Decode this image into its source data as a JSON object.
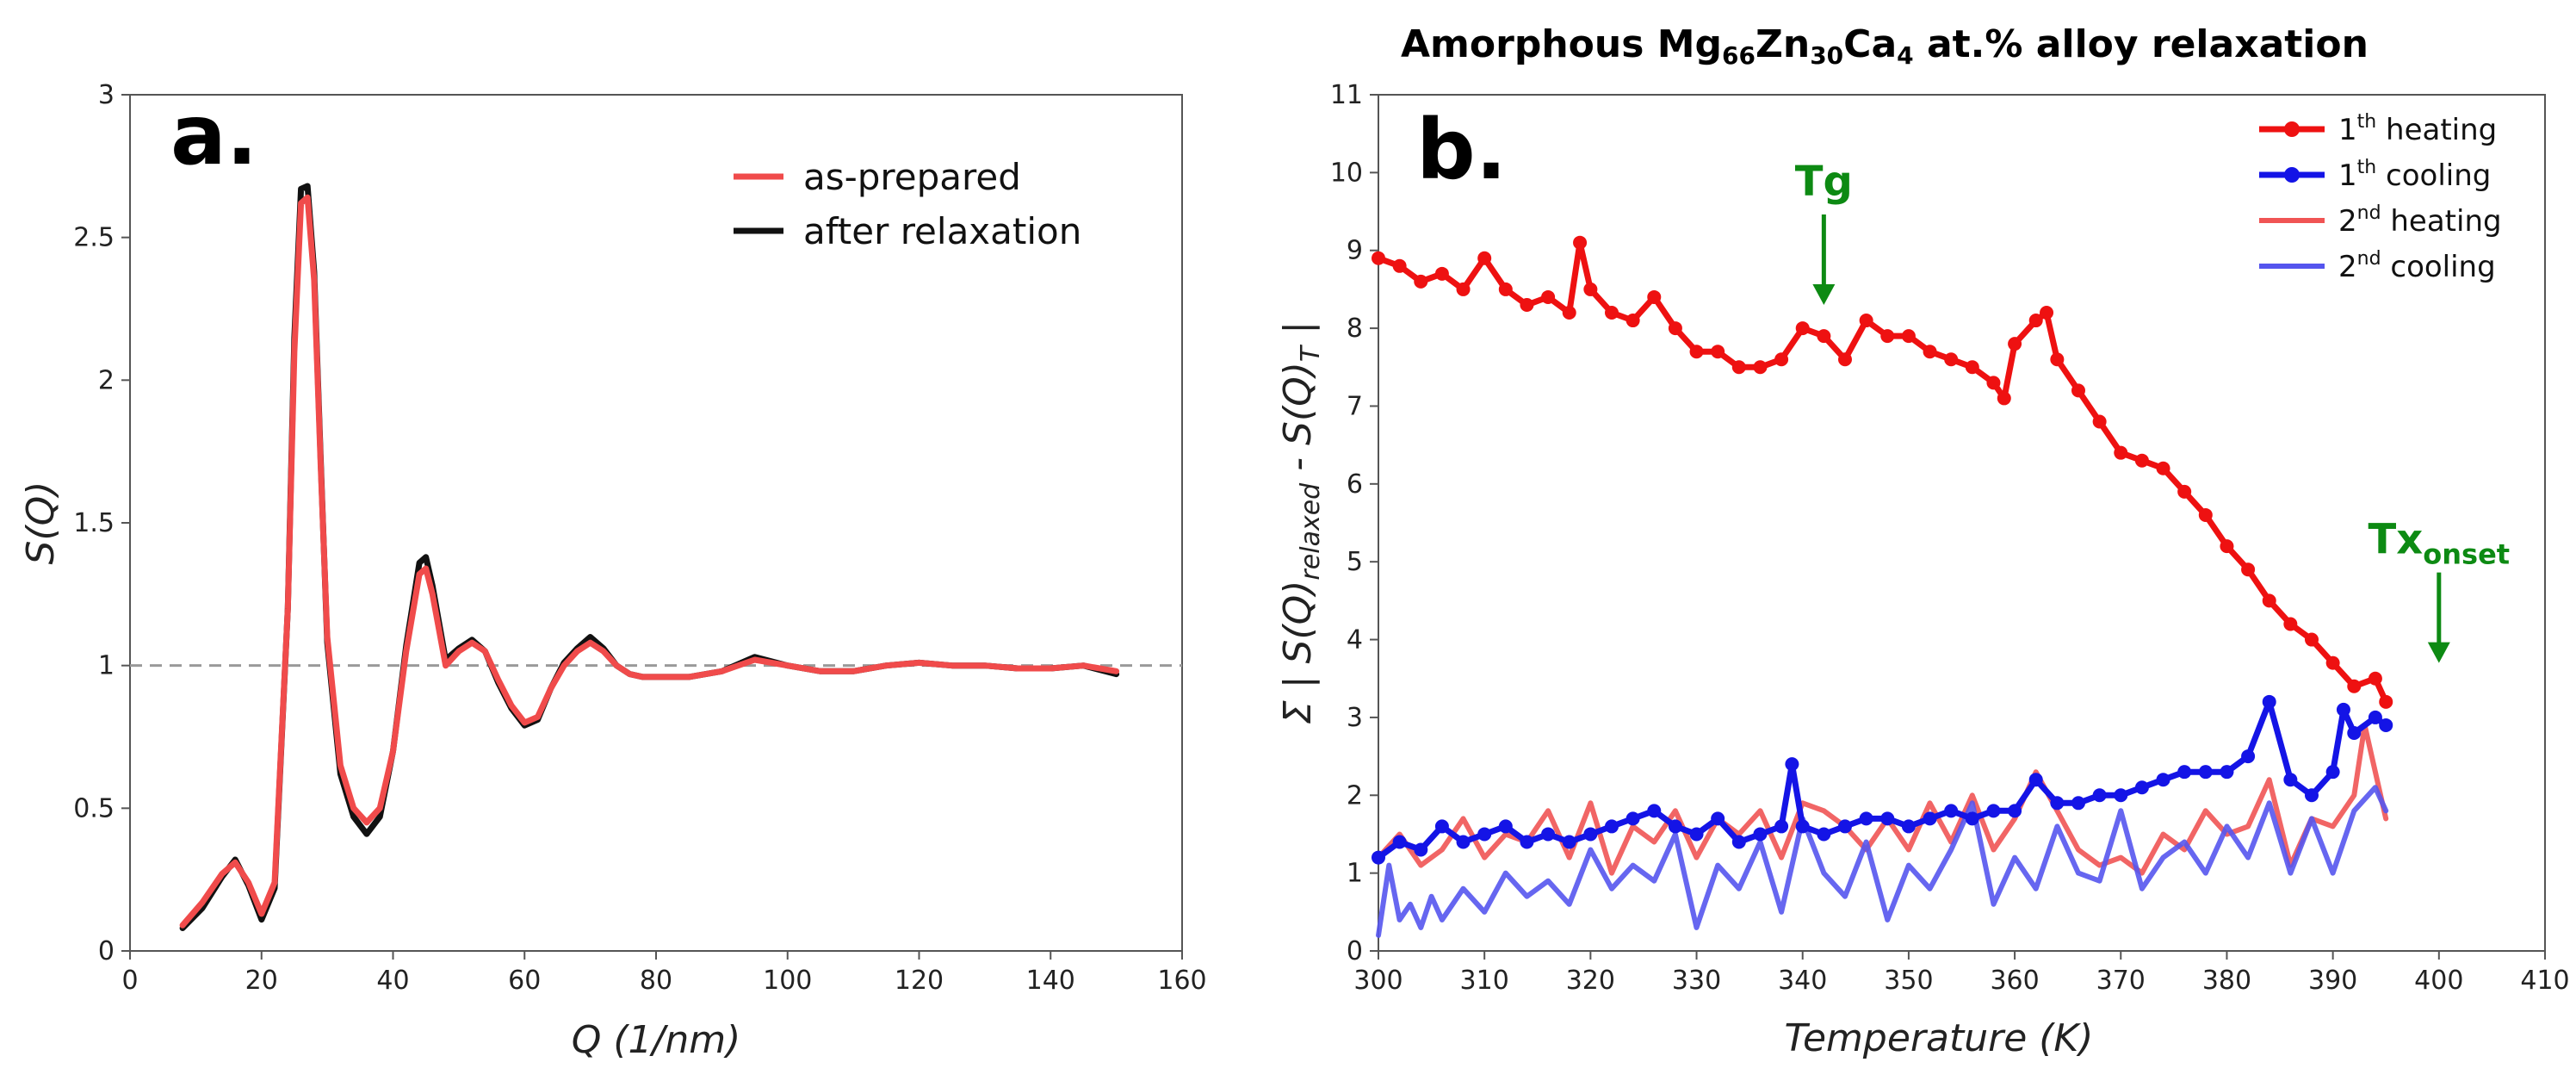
{
  "chart_data": [
    {
      "type": "line",
      "panel_label": "a.",
      "title": "",
      "xlabel": "Q (1/nm)",
      "ylabel": "S(Q)",
      "xlim": [
        0,
        160
      ],
      "ylim": [
        0,
        3
      ],
      "xticks": [
        "0",
        "20",
        "40",
        "60",
        "80",
        "100",
        "120",
        "140",
        "160"
      ],
      "yticks": [
        "0",
        "0.5",
        "1",
        "1.5",
        "2",
        "2.5",
        "3"
      ],
      "reference_line": 1,
      "legend_position": "top-right",
      "series": [
        {
          "name": "as-prepared",
          "color": "#f04b4b",
          "x": [
            8,
            11,
            14,
            16,
            18,
            20,
            22,
            24,
            25,
            26,
            27,
            28,
            29,
            30,
            32,
            34,
            36,
            38,
            40,
            42,
            44,
            45,
            46,
            48,
            50,
            52,
            54,
            56,
            58,
            60,
            62,
            64,
            66,
            68,
            70,
            72,
            74,
            76,
            78,
            80,
            85,
            90,
            95,
            100,
            105,
            110,
            115,
            120,
            125,
            130,
            135,
            140,
            145,
            150
          ],
          "y": [
            0.09,
            0.17,
            0.27,
            0.31,
            0.24,
            0.13,
            0.24,
            1.2,
            2.1,
            2.62,
            2.64,
            2.35,
            1.7,
            1.1,
            0.65,
            0.5,
            0.45,
            0.5,
            0.7,
            1.05,
            1.32,
            1.34,
            1.25,
            1.0,
            1.05,
            1.08,
            1.05,
            0.95,
            0.86,
            0.8,
            0.82,
            0.92,
            1.0,
            1.05,
            1.08,
            1.05,
            1.0,
            0.97,
            0.96,
            0.96,
            0.96,
            0.98,
            1.02,
            1.0,
            0.98,
            0.98,
            1.0,
            1.01,
            1.0,
            1.0,
            0.99,
            0.99,
            1.0,
            0.98
          ]
        },
        {
          "name": "after relaxation",
          "color": "#111111",
          "x": [
            8,
            11,
            14,
            16,
            18,
            20,
            22,
            24,
            25,
            26,
            27,
            28,
            29,
            30,
            32,
            34,
            36,
            38,
            40,
            42,
            44,
            45,
            46,
            48,
            50,
            52,
            54,
            56,
            58,
            60,
            62,
            64,
            66,
            68,
            70,
            72,
            74,
            76,
            78,
            80,
            85,
            90,
            95,
            100,
            105,
            110,
            115,
            120,
            125,
            130,
            135,
            140,
            145,
            150
          ],
          "y": [
            0.08,
            0.15,
            0.26,
            0.32,
            0.23,
            0.11,
            0.22,
            1.2,
            2.15,
            2.67,
            2.68,
            2.38,
            1.72,
            1.08,
            0.62,
            0.47,
            0.41,
            0.47,
            0.7,
            1.07,
            1.36,
            1.38,
            1.28,
            1.02,
            1.06,
            1.09,
            1.05,
            0.94,
            0.85,
            0.79,
            0.81,
            0.92,
            1.01,
            1.06,
            1.1,
            1.06,
            1.0,
            0.97,
            0.96,
            0.96,
            0.96,
            0.98,
            1.03,
            1.0,
            0.98,
            0.98,
            1.0,
            1.01,
            1.0,
            1.0,
            0.99,
            0.99,
            1.0,
            0.97
          ]
        }
      ]
    },
    {
      "type": "line",
      "panel_label": "b.",
      "title": "Amorphous Mg66Zn30Ca4 at.% alloy relaxation",
      "title_parts": {
        "a": "Amorphous Mg",
        "b": "66",
        "c": "Zn",
        "d": "30",
        "e": "Ca",
        "f": "4",
        "g": " at.% alloy relaxation"
      },
      "xlabel": "Temperature (K)",
      "ylabel": "Σ | S(Q)relaxed - S(Q)T |",
      "ylabel_parts": {
        "a": "Σ",
        "b": "S(Q)",
        "c": "relaxed",
        "d": " - S(Q)",
        "e": "T"
      },
      "xlim": [
        300,
        410
      ],
      "ylim": [
        0,
        11
      ],
      "xticks": [
        "300",
        "310",
        "320",
        "330",
        "340",
        "350",
        "360",
        "370",
        "380",
        "390",
        "400",
        "410"
      ],
      "yticks": [
        "0",
        "1",
        "2",
        "3",
        "4",
        "5",
        "6",
        "7",
        "8",
        "9",
        "10",
        "11"
      ],
      "legend_position": "top-right",
      "annotations": [
        {
          "text": "Tg",
          "x": 342,
          "y": 8.3
        },
        {
          "text": "Tx",
          "sub": "onset",
          "x": 400,
          "y": 3.7
        }
      ],
      "series": [
        {
          "name": "1th heating",
          "num": "1",
          "sup": "th",
          "rest": " heating",
          "color": "#ee1111",
          "markers": true,
          "x": [
            300,
            302,
            304,
            306,
            308,
            310,
            312,
            314,
            316,
            318,
            319,
            320,
            322,
            324,
            326,
            328,
            330,
            332,
            334,
            336,
            338,
            340,
            342,
            344,
            346,
            348,
            350,
            352,
            354,
            356,
            358,
            359,
            360,
            362,
            363,
            364,
            366,
            368,
            370,
            372,
            374,
            376,
            378,
            380,
            382,
            384,
            386,
            388,
            390,
            392,
            394,
            395
          ],
          "y": [
            8.9,
            8.8,
            8.6,
            8.7,
            8.5,
            8.9,
            8.5,
            8.3,
            8.4,
            8.2,
            9.1,
            8.5,
            8.2,
            8.1,
            8.4,
            8.0,
            7.7,
            7.7,
            7.5,
            7.5,
            7.6,
            8.0,
            7.9,
            7.6,
            8.1,
            7.9,
            7.9,
            7.7,
            7.6,
            7.5,
            7.3,
            7.1,
            7.8,
            8.1,
            8.2,
            7.6,
            7.2,
            6.8,
            6.4,
            6.3,
            6.2,
            5.9,
            5.6,
            5.2,
            4.9,
            4.5,
            4.2,
            4.0,
            3.7,
            3.4,
            3.5,
            3.2
          ]
        },
        {
          "name": "1th cooling",
          "num": "1",
          "sup": "th",
          "rest": " cooling",
          "color": "#1414e6",
          "markers": true,
          "x": [
            300,
            302,
            304,
            306,
            308,
            310,
            312,
            314,
            316,
            318,
            320,
            322,
            324,
            326,
            328,
            330,
            332,
            334,
            336,
            338,
            339,
            340,
            342,
            344,
            346,
            348,
            350,
            352,
            354,
            356,
            358,
            360,
            362,
            364,
            366,
            368,
            370,
            372,
            374,
            376,
            378,
            380,
            382,
            384,
            386,
            388,
            390,
            391,
            392,
            394,
            395
          ],
          "y": [
            1.2,
            1.4,
            1.3,
            1.6,
            1.4,
            1.5,
            1.6,
            1.4,
            1.5,
            1.4,
            1.5,
            1.6,
            1.7,
            1.8,
            1.6,
            1.5,
            1.7,
            1.4,
            1.5,
            1.6,
            2.4,
            1.6,
            1.5,
            1.6,
            1.7,
            1.7,
            1.6,
            1.7,
            1.8,
            1.7,
            1.8,
            1.8,
            2.2,
            1.9,
            1.9,
            2.0,
            2.0,
            2.1,
            2.2,
            2.3,
            2.3,
            2.3,
            2.5,
            3.2,
            2.2,
            2.0,
            2.3,
            3.1,
            2.8,
            3.0,
            2.9
          ]
        },
        {
          "name": "2nd heating",
          "num": "2",
          "sup": "nd",
          "rest": " heating",
          "color": "#f05454",
          "markers": false,
          "x": [
            300,
            302,
            304,
            306,
            308,
            310,
            312,
            314,
            316,
            318,
            320,
            322,
            324,
            326,
            328,
            330,
            332,
            334,
            336,
            338,
            340,
            342,
            344,
            346,
            348,
            350,
            352,
            354,
            356,
            358,
            360,
            362,
            364,
            366,
            368,
            370,
            372,
            374,
            376,
            378,
            380,
            382,
            384,
            386,
            388,
            390,
            392,
            393,
            394,
            395
          ],
          "y": [
            1.2,
            1.5,
            1.1,
            1.3,
            1.7,
            1.2,
            1.5,
            1.4,
            1.8,
            1.2,
            1.9,
            1.0,
            1.6,
            1.4,
            1.8,
            1.2,
            1.7,
            1.5,
            1.8,
            1.2,
            1.9,
            1.8,
            1.6,
            1.3,
            1.7,
            1.3,
            1.9,
            1.4,
            2.0,
            1.3,
            1.7,
            2.3,
            1.8,
            1.3,
            1.1,
            1.2,
            1.0,
            1.5,
            1.3,
            1.8,
            1.5,
            1.6,
            2.2,
            1.1,
            1.7,
            1.6,
            2.0,
            2.9,
            2.3,
            1.7
          ]
        },
        {
          "name": "2nd cooling",
          "num": "2",
          "sup": "nd",
          "rest": " cooling",
          "color": "#5555ee",
          "markers": false,
          "x": [
            300,
            301,
            302,
            303,
            304,
            305,
            306,
            308,
            310,
            312,
            314,
            316,
            318,
            320,
            322,
            324,
            326,
            328,
            330,
            332,
            334,
            336,
            338,
            340,
            342,
            344,
            346,
            348,
            350,
            352,
            354,
            356,
            358,
            360,
            362,
            364,
            366,
            368,
            370,
            372,
            374,
            376,
            378,
            380,
            382,
            384,
            386,
            388,
            390,
            392,
            394,
            395
          ],
          "y": [
            0.2,
            1.1,
            0.4,
            0.6,
            0.3,
            0.7,
            0.4,
            0.8,
            0.5,
            1.0,
            0.7,
            0.9,
            0.6,
            1.3,
            0.8,
            1.1,
            0.9,
            1.5,
            0.3,
            1.1,
            0.8,
            1.4,
            0.5,
            1.7,
            1.0,
            0.7,
            1.4,
            0.4,
            1.1,
            0.8,
            1.3,
            1.9,
            0.6,
            1.2,
            0.8,
            1.6,
            1.0,
            0.9,
            1.8,
            0.8,
            1.2,
            1.4,
            1.0,
            1.6,
            1.2,
            1.9,
            1.0,
            1.7,
            1.0,
            1.8,
            2.1,
            1.8
          ]
        }
      ]
    }
  ]
}
